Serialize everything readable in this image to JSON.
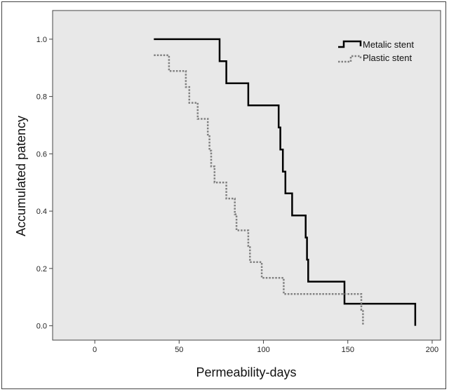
{
  "chart_data": {
    "type": "line",
    "xlabel": "Permeability-days",
    "ylabel": "Accumulated patency",
    "xlim": [
      -25,
      205
    ],
    "ylim": [
      -0.05,
      1.1
    ],
    "xticks": [
      0,
      50,
      100,
      150,
      200
    ],
    "xtick_labels": [
      "0",
      "50",
      "100",
      "150",
      "200"
    ],
    "yticks": [
      0.0,
      0.2,
      0.4,
      0.6,
      0.8,
      1.0
    ],
    "ytick_labels": [
      "0.0",
      "0.2",
      "0.4",
      "0.6",
      "0.8",
      "1.0"
    ],
    "plot_background": "#e8e8e8",
    "grid": false,
    "legend_position": "top-right",
    "series": [
      {
        "name": "Metalic stent",
        "style": "solid",
        "color": "#000000",
        "step": true,
        "points": [
          [
            35,
            1.0
          ],
          [
            74,
            1.0
          ],
          [
            74,
            0.923
          ],
          [
            78,
            0.923
          ],
          [
            78,
            0.846
          ],
          [
            91,
            0.846
          ],
          [
            91,
            0.769
          ],
          [
            109,
            0.769
          ],
          [
            109,
            0.692
          ],
          [
            110,
            0.692
          ],
          [
            110,
            0.615
          ],
          [
            111.5,
            0.615
          ],
          [
            111.5,
            0.538
          ],
          [
            113,
            0.538
          ],
          [
            113,
            0.462
          ],
          [
            117,
            0.462
          ],
          [
            117,
            0.385
          ],
          [
            125,
            0.385
          ],
          [
            125,
            0.308
          ],
          [
            125.8,
            0.308
          ],
          [
            125.8,
            0.231
          ],
          [
            126.5,
            0.231
          ],
          [
            126.5,
            0.154
          ],
          [
            148,
            0.154
          ],
          [
            148,
            0.077
          ],
          [
            190,
            0.077
          ],
          [
            190,
            0.0
          ]
        ]
      },
      {
        "name": "Plastic stent",
        "style": "dotted",
        "color": "#808080",
        "step": true,
        "points": [
          [
            35,
            0.944
          ],
          [
            44,
            0.944
          ],
          [
            44,
            0.889
          ],
          [
            54,
            0.889
          ],
          [
            54,
            0.833
          ],
          [
            56,
            0.833
          ],
          [
            56,
            0.778
          ],
          [
            61,
            0.778
          ],
          [
            61,
            0.722
          ],
          [
            67,
            0.722
          ],
          [
            67,
            0.667
          ],
          [
            68,
            0.667
          ],
          [
            68,
            0.611
          ],
          [
            69,
            0.611
          ],
          [
            69,
            0.556
          ],
          [
            71,
            0.556
          ],
          [
            71,
            0.5
          ],
          [
            78,
            0.5
          ],
          [
            78,
            0.444
          ],
          [
            83,
            0.444
          ],
          [
            83,
            0.389
          ],
          [
            84,
            0.389
          ],
          [
            84,
            0.333
          ],
          [
            91,
            0.333
          ],
          [
            91,
            0.278
          ],
          [
            92,
            0.278
          ],
          [
            92,
            0.222
          ],
          [
            99,
            0.222
          ],
          [
            99,
            0.167
          ],
          [
            112,
            0.167
          ],
          [
            112,
            0.111
          ],
          [
            158,
            0.111
          ],
          [
            158,
            0.056
          ],
          [
            159,
            0.056
          ],
          [
            159,
            0.0
          ]
        ]
      }
    ]
  }
}
